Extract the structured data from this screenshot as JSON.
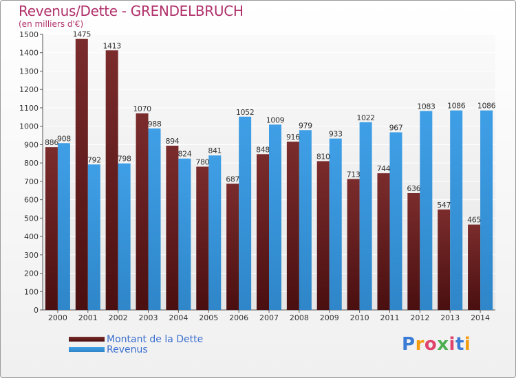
{
  "title": "Revenus/Dette - GRENDELBRUCH",
  "subtitle": "(en milliers d'€)",
  "logo": {
    "text": "Proxiti",
    "letter_colors": [
      "#3a7bd5",
      "#f39c12",
      "#e0446a",
      "#4caf50",
      "#e0446a",
      "#3a7bd5",
      "#f39c12"
    ]
  },
  "colors": {
    "debt": "#7b2c2c",
    "revenue": "#3f9fe6"
  },
  "chart_data": {
    "type": "bar",
    "categories": [
      "2000",
      "2001",
      "2002",
      "2003",
      "2004",
      "2005",
      "2006",
      "2007",
      "2008",
      "2009",
      "2010",
      "2011",
      "2012",
      "2013",
      "2014"
    ],
    "series": [
      {
        "name": "Montant de la Dette",
        "values": [
          886,
          1475,
          1413,
          1070,
          894,
          780,
          687,
          848,
          916,
          810,
          713,
          744,
          636,
          547,
          465
        ]
      },
      {
        "name": "Revenus",
        "values": [
          908,
          792,
          798,
          988,
          824,
          841,
          1052,
          1009,
          979,
          933,
          1022,
          967,
          1083,
          1086,
          1086
        ]
      }
    ],
    "yticks": [
      0,
      100,
      200,
      300,
      400,
      500,
      600,
      700,
      800,
      900,
      1000,
      1100,
      1200,
      1300,
      1400,
      1500
    ],
    "ylim": [
      0,
      1500
    ],
    "grid": true,
    "legend_position": "bottom-left"
  }
}
